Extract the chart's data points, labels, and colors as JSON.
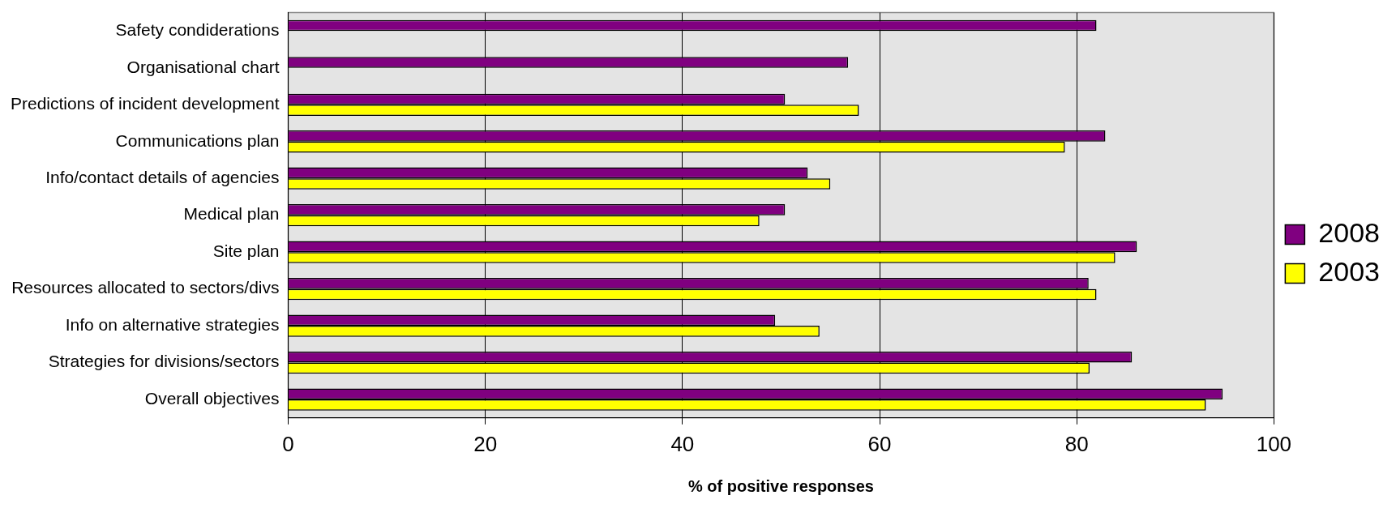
{
  "chart_data": {
    "type": "bar",
    "orientation": "horizontal",
    "xlabel": "% of positive responses",
    "categories": [
      "Safety condiderations",
      "Organisational chart",
      "Predictions of incident development",
      "Communications plan",
      "Info/contact details of agencies",
      "Medical plan",
      "Site plan",
      "Resources allocated to sectors/divs",
      "Info on alternative strategies",
      "Strategies for divisions/sectors",
      "Overall objectives"
    ],
    "series": [
      {
        "name": "2008",
        "color": "#800080",
        "values": [
          82.0,
          56.8,
          50.4,
          82.9,
          52.7,
          50.4,
          86.1,
          81.2,
          49.4,
          85.6,
          94.8
        ]
      },
      {
        "name": "2003",
        "color": "#ffff00",
        "values": [
          null,
          null,
          57.9,
          78.8,
          55.0,
          47.8,
          83.9,
          82.0,
          53.9,
          81.3,
          93.1
        ]
      }
    ],
    "xlim": [
      0,
      100
    ],
    "xticks": [
      0,
      20,
      40,
      60,
      80,
      100
    ],
    "grid": "x",
    "legend": "right"
  }
}
